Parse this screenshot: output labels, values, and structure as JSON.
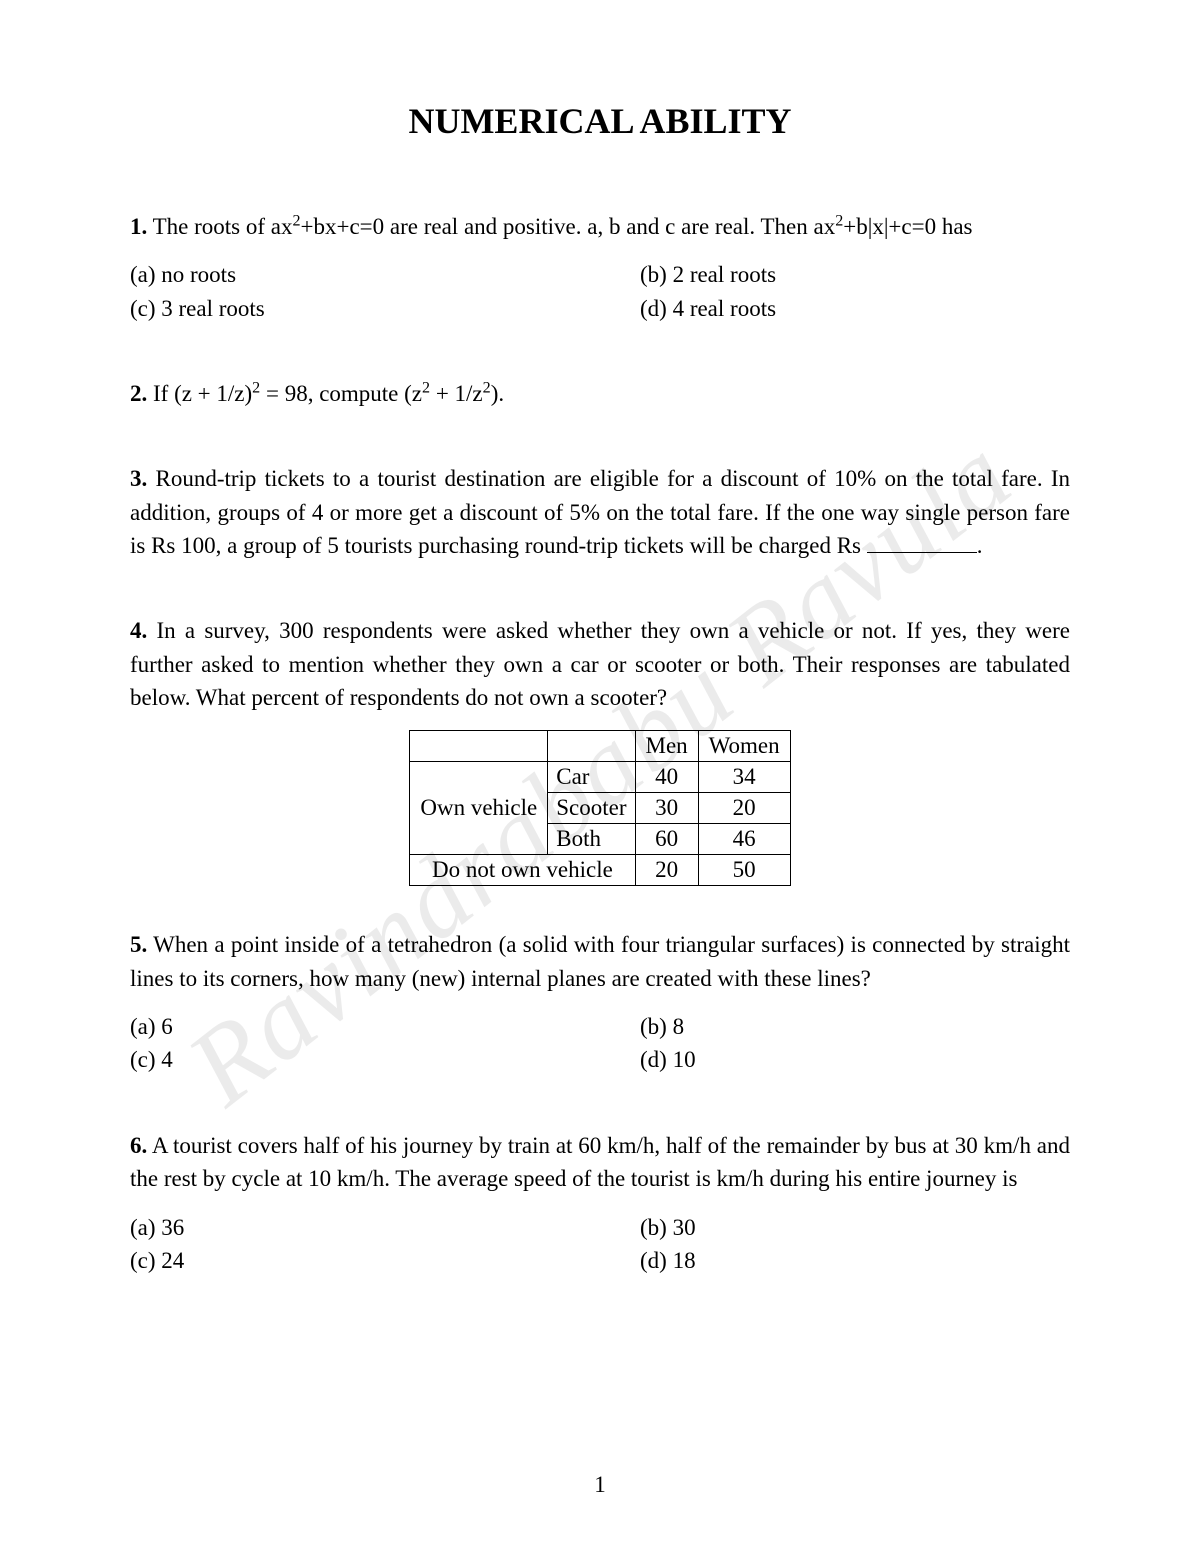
{
  "watermark": "Ravindrababu Ravula",
  "title": "NUMERICAL ABILITY",
  "page_number": "1",
  "q1": {
    "num": "1.",
    "text_before": "The roots of ax",
    "text_mid1": "+bx+c=0 are real and positive. a, b and c are real. Then ax",
    "text_mid2": "+b|x|+c=0 has",
    "opt_a": "(a) no roots",
    "opt_b": "(b) 2 real roots",
    "opt_c": "(c) 3 real roots",
    "opt_d": "(d) 4 real roots"
  },
  "q2": {
    "num": "2.",
    "text_before": "If (z + 1/z)",
    "text_mid": " = 98, compute (z",
    "text_mid2": " + 1/z",
    "text_after": ")."
  },
  "q3": {
    "num": "3.",
    "text": "Round-trip tickets to a tourist destination are eligible for a discount of 10% on the total fare. In addition, groups of 4 or more get a discount of 5% on the total fare. If the one way single person fare is Rs 100, a group of 5 tourists purchasing round-trip tickets will be charged Rs ",
    "after": "."
  },
  "q4": {
    "num": "4.",
    "text": "In a survey, 300 respondents were asked whether they own a vehicle or not. If yes, they were further asked to mention whether they own a car or scooter or both. Their responses are tabulated below. What percent of respondents do not own a scooter?"
  },
  "table": {
    "head_men": "Men",
    "head_women": "Women",
    "own": "Own vehicle",
    "car": "Car",
    "scooter": "Scooter",
    "both": "Both",
    "not_own": "Do not own vehicle",
    "r1c1": "40",
    "r1c2": "34",
    "r2c1": "30",
    "r2c2": "20",
    "r3c1": "60",
    "r3c2": "46",
    "r4c1": "20",
    "r4c2": "50"
  },
  "q5": {
    "num": "5.",
    "text": "When a point inside of a tetrahedron (a solid with four triangular surfaces) is connected by straight lines to its corners, how many (new) internal planes are created with these lines?",
    "opt_a": "(a) 6",
    "opt_b": "(b) 8",
    "opt_c": "(c) 4",
    "opt_d": "(d) 10"
  },
  "q6": {
    "num": "6.",
    "text": "A tourist covers half of his journey by train at 60 km/h, half of the remainder by bus at 30 km/h and the rest by cycle at 10 km/h. The average speed of the tourist is km/h during his entire journey is",
    "opt_a": "(a) 36",
    "opt_b": "(b) 30",
    "opt_c": "(c) 24",
    "opt_d": "(d) 18"
  }
}
